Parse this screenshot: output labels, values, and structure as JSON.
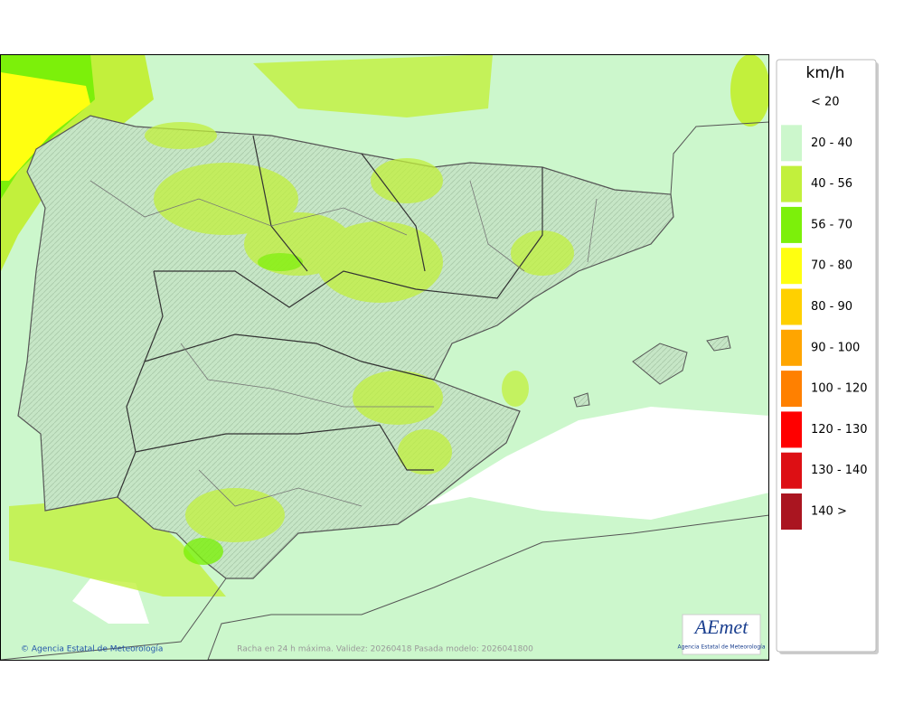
{
  "legend": {
    "title": "km/h",
    "items": [
      {
        "label": "< 20",
        "color": "#ffffff"
      },
      {
        "label": "20 - 40",
        "color": "#ccf7cc"
      },
      {
        "label": "40 - 56",
        "color": "#c2f03c"
      },
      {
        "label": "56 - 70",
        "color": "#7cf00a"
      },
      {
        "label": "70 - 80",
        "color": "#ffff10"
      },
      {
        "label": "80 - 90",
        "color": "#ffd000"
      },
      {
        "label": "90 - 100",
        "color": "#ffa500"
      },
      {
        "label": "100 - 120",
        "color": "#ff8000"
      },
      {
        "label": "120 - 130",
        "color": "#ff0000"
      },
      {
        "label": "130 - 140",
        "color": "#dd0f14"
      },
      {
        "label": "140 >",
        "color": "#aa1520"
      }
    ]
  },
  "footer": {
    "credit": "© Agencia Estatal de Meteorología",
    "caption": "Racha en 24 h máxima. Validez: 20260418 Pasada modelo: 2026041800"
  },
  "logo": {
    "name": "AEmet",
    "subtitle": "Agencia Estatal de Meteorología"
  }
}
